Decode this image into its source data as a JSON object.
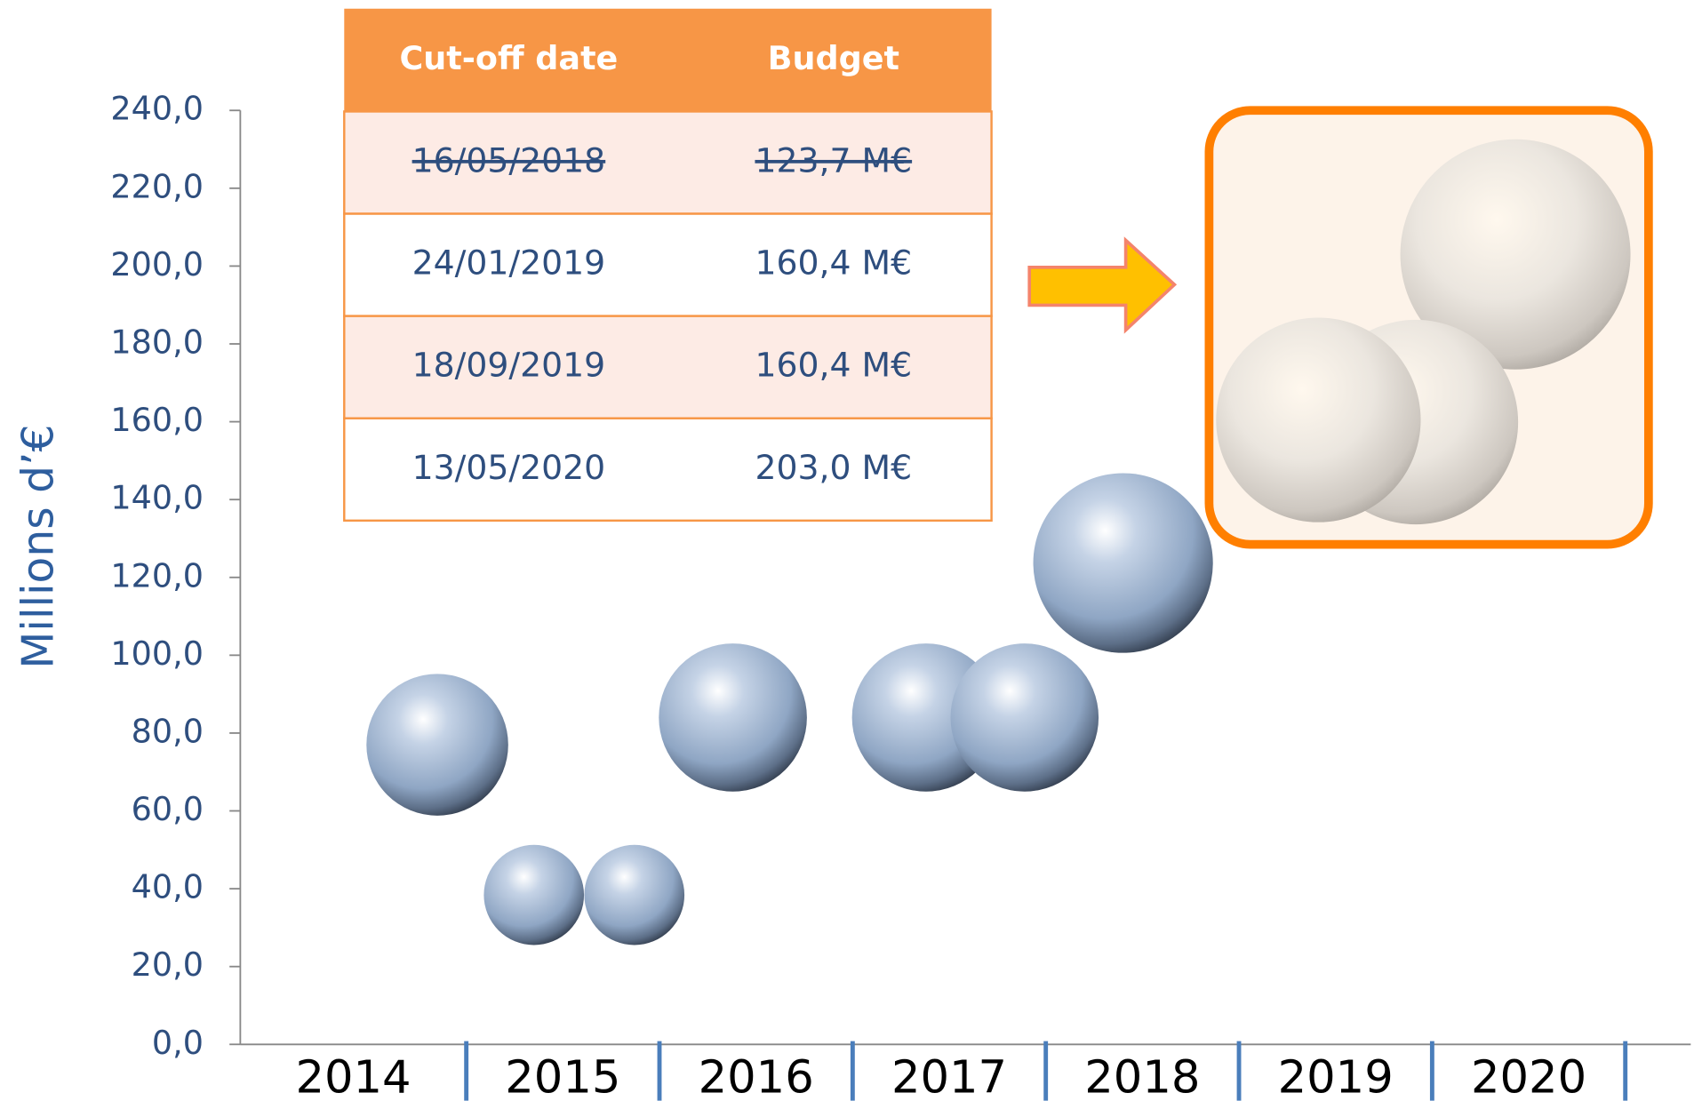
{
  "chart_data": {
    "type": "bubble",
    "ylabel": "Millions d’€",
    "ylim": [
      0,
      240
    ],
    "yticks": [
      {
        "value": 0,
        "label": "0,0"
      },
      {
        "value": 20,
        "label": "20,0"
      },
      {
        "value": 40,
        "label": "40,0"
      },
      {
        "value": 60,
        "label": "60,0"
      },
      {
        "value": 80,
        "label": "80,0"
      },
      {
        "value": 100,
        "label": "100,0"
      },
      {
        "value": 120,
        "label": "120,0"
      },
      {
        "value": 140,
        "label": "140,0"
      },
      {
        "value": 160,
        "label": "160,0"
      },
      {
        "value": 180,
        "label": "180,0"
      },
      {
        "value": 200,
        "label": "200,0"
      },
      {
        "value": 220,
        "label": "220,0"
      },
      {
        "value": 240,
        "label": "240,0"
      }
    ],
    "xlim": [
      2013.83,
      2021.35
    ],
    "xticks": [
      2015,
      2016,
      2017,
      2018,
      2019,
      2020,
      2021
    ],
    "categories": [
      "2014",
      "2015",
      "2016",
      "2017",
      "2018",
      "2019",
      "2020"
    ],
    "x": [
      2014.85,
      2015.35,
      2015.87,
      2016.38,
      2017.38,
      2017.89,
      2018.4
    ],
    "values": [
      77.0,
      38.4,
      38.4,
      84.0,
      84.0,
      84.0,
      123.7
    ],
    "sizes": [
      77.0,
      38.4,
      38.4,
      84.0,
      84.0,
      84.0,
      123.7
    ],
    "inset": {
      "values": [
        160.4,
        160.4,
        203.0
      ]
    },
    "table": {
      "header": [
        "Cut-off date",
        "Budget"
      ],
      "rows": [
        {
          "date": "16/05/2018",
          "budget": "123,7 M€",
          "struck": true
        },
        {
          "date": "24/01/2019",
          "budget": "160,4 M€",
          "struck": false
        },
        {
          "date": "18/09/2019",
          "budget": "160,4 M€",
          "struck": false
        },
        {
          "date": "13/05/2020",
          "budget": "203,0 M€",
          "struck": false
        }
      ]
    }
  }
}
